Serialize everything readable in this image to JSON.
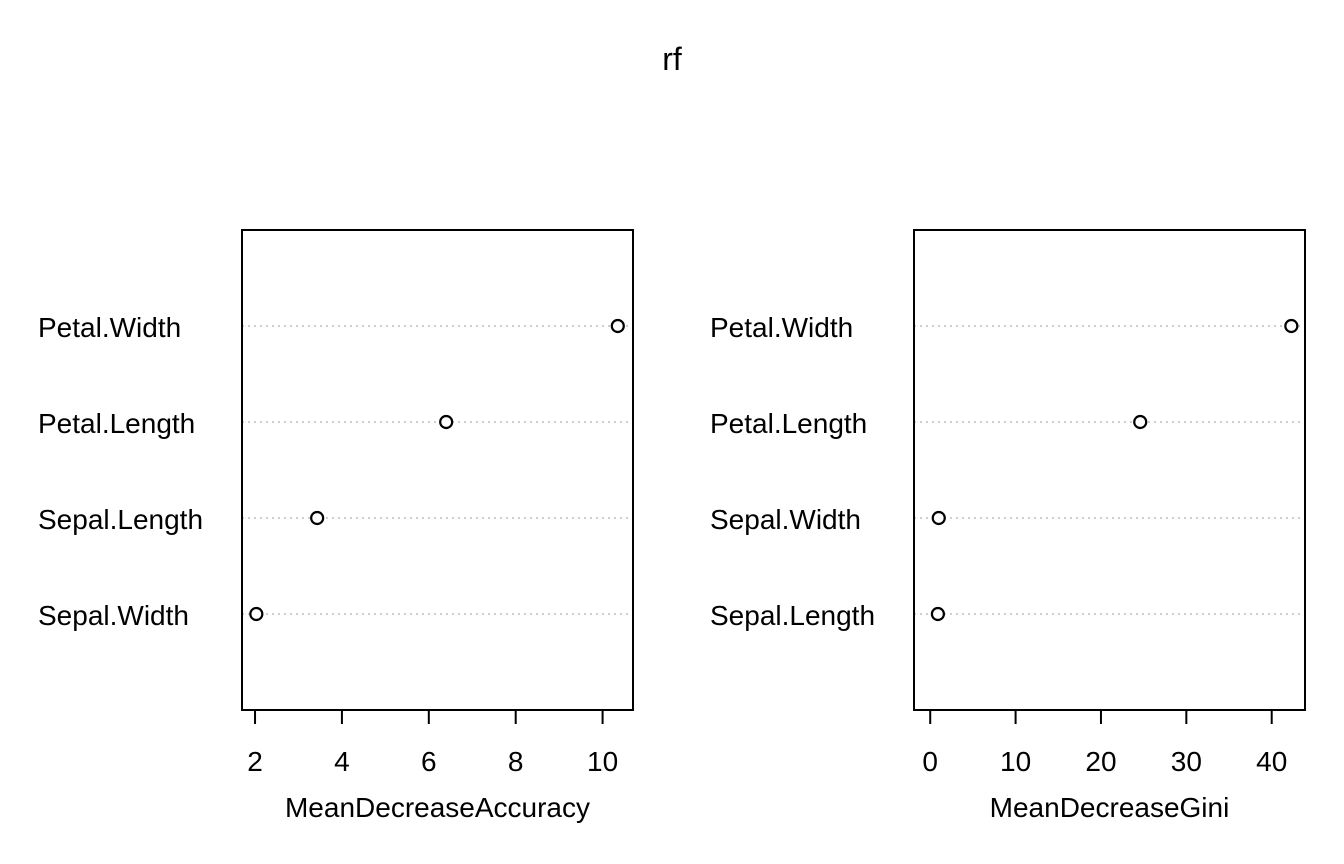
{
  "chart_data": {
    "title": "rf",
    "panels": [
      {
        "type": "scatter",
        "subtype": "dotchart",
        "xlabel": "MeanDecreaseAccuracy",
        "xlim": [
          1.7,
          10.7
        ],
        "ticks": [
          2,
          4,
          6,
          8,
          10
        ],
        "categories": [
          "Petal.Width",
          "Petal.Length",
          "Sepal.Length",
          "Sepal.Width"
        ],
        "values": [
          10.35,
          6.4,
          3.43,
          2.03
        ],
        "grid": "dotted-horizontal"
      },
      {
        "type": "scatter",
        "subtype": "dotchart",
        "xlabel": "MeanDecreaseGini",
        "xlim": [
          -1.9,
          43.9
        ],
        "ticks": [
          0,
          10,
          20,
          30,
          40
        ],
        "categories": [
          "Petal.Width",
          "Petal.Length",
          "Sepal.Width",
          "Sepal.Length"
        ],
        "values": [
          42.3,
          24.6,
          1.0,
          0.9
        ],
        "grid": "dotted-horizontal"
      }
    ]
  }
}
